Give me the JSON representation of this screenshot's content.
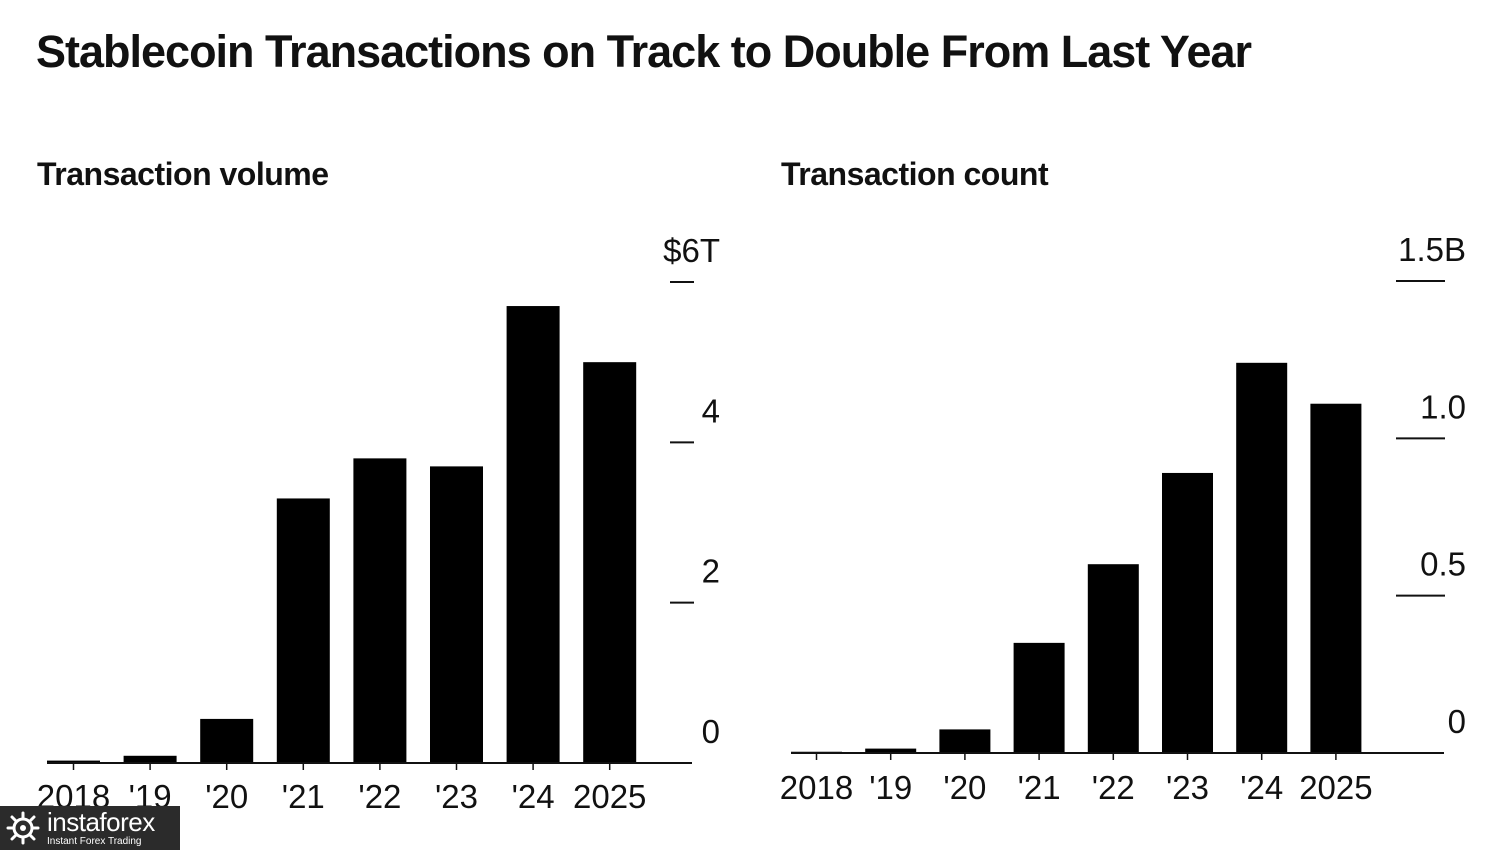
{
  "title": "Stablecoin Transactions on Track to Double From Last Year",
  "chart_data": [
    {
      "type": "bar",
      "title": "Transaction volume",
      "categories": [
        "2018",
        "'19",
        "'20",
        "'21",
        "'22",
        "'23",
        "'24",
        "2025"
      ],
      "values": [
        0.03,
        0.09,
        0.55,
        3.3,
        3.8,
        3.7,
        5.7,
        5.0
      ],
      "ylim": [
        0,
        6
      ],
      "yticks": [
        0,
        2,
        4,
        6
      ],
      "ytick_labels": [
        "0",
        "2",
        "4",
        "$6T"
      ],
      "xlabel": "",
      "ylabel": "",
      "grid": false,
      "axis_position": "right"
    },
    {
      "type": "bar",
      "title": "Transaction count",
      "categories": [
        "2018",
        "'19",
        "'20",
        "'21",
        "'22",
        "'23",
        "'24",
        "2025"
      ],
      "values": [
        0.004,
        0.014,
        0.075,
        0.35,
        0.6,
        0.89,
        1.24,
        1.11
      ],
      "ylim": [
        0,
        1.5
      ],
      "yticks": [
        0,
        0.5,
        1.0,
        1.5
      ],
      "ytick_labels": [
        "0",
        "0.5",
        "1.0",
        "1.5B"
      ],
      "xlabel": "",
      "ylabel": "",
      "grid": false,
      "axis_position": "right"
    }
  ],
  "watermark": {
    "brand": "instaforex",
    "tagline": "Instant Forex Trading",
    "icon": "instaforex-logo-icon"
  },
  "colors": {
    "bars": "#000000",
    "text": "#111111",
    "watermark_bg": "#2b2b2b"
  }
}
